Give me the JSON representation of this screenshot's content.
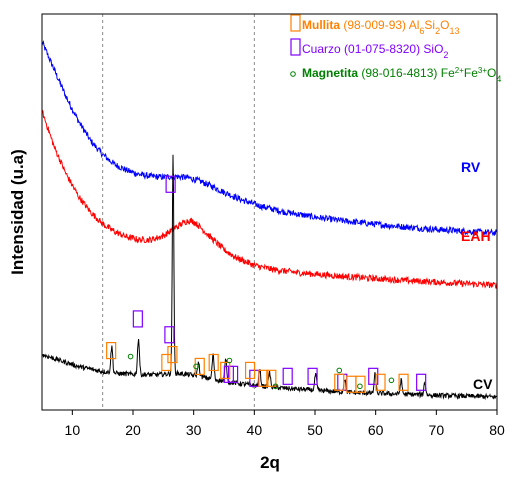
{
  "chart_data": {
    "type": "line",
    "xlabel": "2q",
    "ylabel": "Intensidad (u.a)",
    "xlim": [
      5,
      80
    ],
    "x_ticks": [
      10,
      20,
      30,
      40,
      50,
      60,
      70,
      80
    ],
    "y_ticks": false,
    "reference_lines": [
      15,
      40
    ],
    "series": [
      {
        "name": "RV",
        "color": "#0000ff",
        "points": [
          [
            5,
            0.93
          ],
          [
            7,
            0.86
          ],
          [
            9,
            0.79
          ],
          [
            11,
            0.73
          ],
          [
            13,
            0.68
          ],
          [
            15,
            0.645
          ],
          [
            17,
            0.62
          ],
          [
            19,
            0.605
          ],
          [
            21,
            0.595
          ],
          [
            23,
            0.59
          ],
          [
            25,
            0.588
          ],
          [
            27,
            0.59
          ],
          [
            29,
            0.587
          ],
          [
            31,
            0.578
          ],
          [
            33,
            0.565
          ],
          [
            35,
            0.55
          ],
          [
            38,
            0.53
          ],
          [
            41,
            0.515
          ],
          [
            45,
            0.5
          ],
          [
            50,
            0.487
          ],
          [
            55,
            0.477
          ],
          [
            60,
            0.469
          ],
          [
            65,
            0.462
          ],
          [
            70,
            0.456
          ],
          [
            75,
            0.451
          ],
          [
            80,
            0.447
          ]
        ]
      },
      {
        "name": "EAH",
        "color": "#ff0000",
        "points": [
          [
            5,
            0.755
          ],
          [
            7,
            0.665
          ],
          [
            9,
            0.595
          ],
          [
            11,
            0.54
          ],
          [
            13,
            0.5
          ],
          [
            15,
            0.47
          ],
          [
            17,
            0.45
          ],
          [
            19,
            0.437
          ],
          [
            21,
            0.43
          ],
          [
            23,
            0.43
          ],
          [
            25,
            0.44
          ],
          [
            27,
            0.46
          ],
          [
            28,
            0.47
          ],
          [
            29,
            0.478
          ],
          [
            30,
            0.476
          ],
          [
            31,
            0.463
          ],
          [
            33,
            0.433
          ],
          [
            35,
            0.405
          ],
          [
            37,
            0.385
          ],
          [
            40,
            0.365
          ],
          [
            43,
            0.355
          ],
          [
            47,
            0.347
          ],
          [
            50,
            0.343
          ],
          [
            55,
            0.337
          ],
          [
            60,
            0.332
          ],
          [
            65,
            0.327
          ],
          [
            70,
            0.323
          ],
          [
            75,
            0.319
          ],
          [
            80,
            0.315
          ]
        ]
      },
      {
        "name": "CV",
        "color": "#000000",
        "points": [
          [
            5,
            0.14
          ],
          [
            8,
            0.125
          ],
          [
            11,
            0.11
          ],
          [
            14,
            0.1
          ],
          [
            17,
            0.093
          ],
          [
            20,
            0.09
          ],
          [
            23,
            0.089
          ],
          [
            25,
            0.09
          ],
          [
            27,
            0.093
          ],
          [
            29,
            0.09
          ],
          [
            31,
            0.085
          ],
          [
            33,
            0.078
          ],
          [
            36,
            0.07
          ],
          [
            40,
            0.062
          ],
          [
            45,
            0.055
          ],
          [
            50,
            0.05
          ],
          [
            55,
            0.045
          ],
          [
            60,
            0.042
          ],
          [
            65,
            0.04
          ],
          [
            70,
            0.037
          ],
          [
            75,
            0.035
          ],
          [
            80,
            0.033
          ]
        ],
        "peaks": [
          [
            16.5,
            0.16
          ],
          [
            20.9,
            0.18
          ],
          [
            26.6,
            0.65
          ],
          [
            30.8,
            0.12
          ],
          [
            33.2,
            0.14
          ],
          [
            35.3,
            0.13
          ],
          [
            40.9,
            0.1
          ],
          [
            42.5,
            0.095
          ],
          [
            50.1,
            0.09
          ],
          [
            54.9,
            0.08
          ],
          [
            59.9,
            0.09
          ],
          [
            64.2,
            0.075
          ],
          [
            68.1,
            0.07
          ]
        ]
      }
    ],
    "legend": [
      {
        "marker": "square",
        "color": "#ff8000",
        "name": "Mullita",
        "ref": "(98-009-93)",
        "formula": "Al",
        "formula_parts": [
          [
            "Al",
            ""
          ],
          [
            "6",
            "sub"
          ],
          [
            "Si",
            ""
          ],
          [
            "2",
            "sub"
          ],
          [
            "O",
            ""
          ],
          [
            "13",
            "sub"
          ]
        ]
      },
      {
        "marker": "square",
        "color": "#8000ff",
        "name": "Cuarzo",
        "ref": "(01-075-8320)",
        "formula_parts": [
          [
            "SiO",
            ""
          ],
          [
            "2",
            "sub"
          ]
        ]
      },
      {
        "marker": "circle",
        "color": "#008000",
        "name": "Magnetita",
        "ref": "(98-016-4813)",
        "formula_parts": [
          [
            "Fe",
            ""
          ],
          [
            "2+",
            "sup"
          ],
          [
            "Fe",
            ""
          ],
          [
            "3+",
            "sup"
          ],
          [
            "O",
            ""
          ],
          [
            "4",
            "sub"
          ]
        ]
      }
    ],
    "markers": {
      "cuarzo": [
        [
          20.8,
          0.23
        ],
        [
          26.2,
          0.57
        ],
        [
          26.0,
          0.19
        ],
        [
          35.8,
          0.09
        ],
        [
          36.5,
          0.09
        ],
        [
          40.0,
          0.08
        ],
        [
          45.5,
          0.085
        ],
        [
          49.6,
          0.085
        ],
        [
          54.5,
          0.07
        ],
        [
          59.6,
          0.085
        ],
        [
          67.5,
          0.07
        ]
      ],
      "mullita": [
        [
          16.4,
          0.15
        ],
        [
          25.5,
          0.12
        ],
        [
          26.5,
          0.14
        ],
        [
          31.0,
          0.11
        ],
        [
          33.3,
          0.12
        ],
        [
          35.2,
          0.1
        ],
        [
          39.3,
          0.1
        ],
        [
          41.5,
          0.08
        ],
        [
          42.8,
          0.08
        ],
        [
          54.0,
          0.07
        ],
        [
          56.0,
          0.065
        ],
        [
          57.5,
          0.065
        ],
        [
          60.8,
          0.07
        ],
        [
          64.6,
          0.07
        ]
      ],
      "magnetita": [
        [
          19.6,
          0.135
        ],
        [
          30.4,
          0.11
        ],
        [
          35.9,
          0.125
        ],
        [
          43.5,
          0.06
        ],
        [
          54.0,
          0.1
        ],
        [
          57.4,
          0.06
        ],
        [
          62.6,
          0.075
        ]
      ]
    }
  }
}
